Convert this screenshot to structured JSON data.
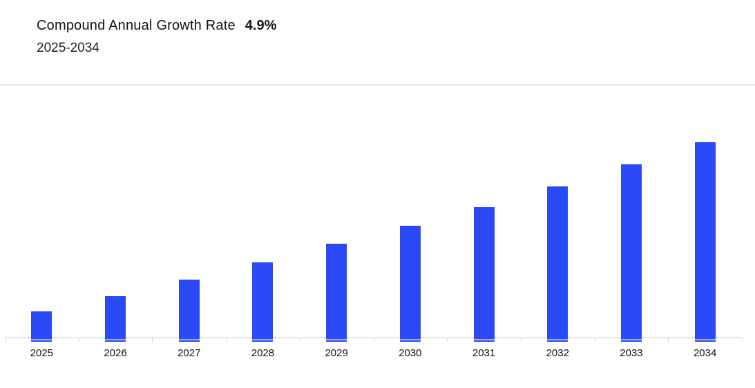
{
  "header": {
    "title": "Compound Annual Growth Rate",
    "cagr_value": "4.9%",
    "subtitle": "2025-2034"
  },
  "colors": {
    "bar": "#2b4af7",
    "bar_stripe": "#9faef8",
    "axis_line": "#e5e5e5",
    "tick": "#d7d7d7",
    "divider": "#e9e9e9",
    "title_text": "#121212",
    "label_text": "#111111",
    "background": "#ffffff"
  },
  "chart_data": {
    "type": "bar",
    "title": "Compound Annual Growth Rate 4.9%",
    "subtitle": "2025-2034",
    "categories": [
      "2025",
      "2026",
      "2027",
      "2028",
      "2029",
      "2030",
      "2031",
      "2032",
      "2033",
      "2034"
    ],
    "values": [
      13.4,
      21.3,
      29.8,
      38.4,
      48.0,
      57.0,
      66.8,
      77.2,
      88.7,
      100
    ],
    "values_unit": "relative bar height, % of 2034 bar (y-axis unlabeled in chart)",
    "xlabel": "",
    "ylabel": "",
    "ylim": [
      0,
      100
    ],
    "grid": false,
    "legend": false,
    "bar_color": "#2b4af7",
    "bar_accent_stripe_color": "#9faef8"
  }
}
